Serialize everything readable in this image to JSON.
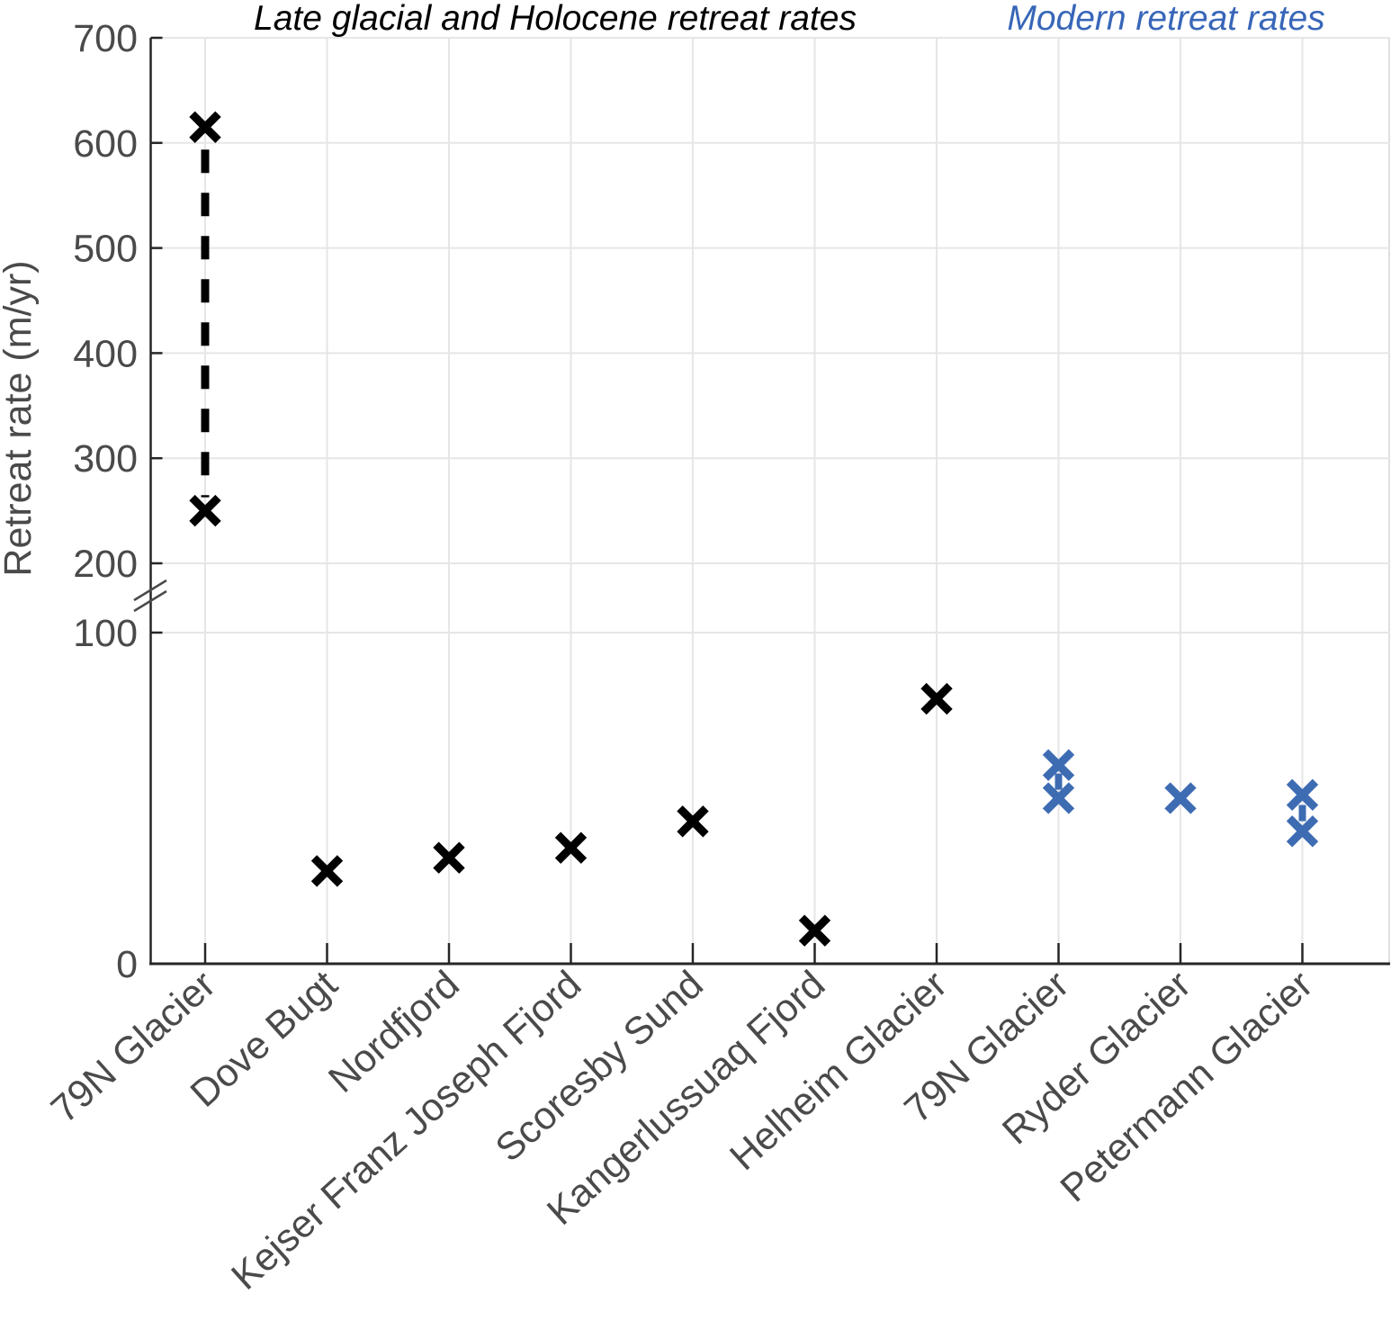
{
  "chart_data": {
    "type": "scatter",
    "marker": "x",
    "grid": true,
    "legend": "none",
    "title_left": "Late glacial and Holocene retreat rates",
    "title_right": "Modern retreat rates",
    "ylabel": "Retreat rate (m/yr)",
    "xlabel": "",
    "units": "m/yr",
    "y_ticks": [
      0,
      100,
      200,
      300,
      400,
      500,
      600,
      700
    ],
    "y_axis_break": {
      "lower_segment": [
        0,
        100
      ],
      "upper_segment": [
        200,
        700
      ]
    },
    "series_meta": [
      {
        "id": "paleo",
        "name": "Late glacial and Holocene retreat rates",
        "color": "#000000"
      },
      {
        "id": "modern",
        "name": "Modern retreat rates",
        "color": "#3e6cb3"
      }
    ],
    "categories": [
      {
        "label": "79N Glacier",
        "series": "paleo",
        "values": [
          250,
          615
        ],
        "range": true
      },
      {
        "label": "Dove Bugt",
        "series": "paleo",
        "values": [
          28
        ],
        "range": false
      },
      {
        "label": "Nordfjord",
        "series": "paleo",
        "values": [
          32
        ],
        "range": false
      },
      {
        "label": "Kejser Franz Joseph Fjord",
        "series": "paleo",
        "values": [
          35
        ],
        "range": false
      },
      {
        "label": "Scoresby Sund",
        "series": "paleo",
        "values": [
          43
        ],
        "range": false
      },
      {
        "label": "Kangerlussuaq Fjord",
        "series": "paleo",
        "values": [
          10
        ],
        "range": false
      },
      {
        "label": "Helheim Glacier",
        "series": "paleo",
        "values": [
          80
        ],
        "range": false
      },
      {
        "label": "79N Glacier",
        "series": "modern",
        "values": [
          50,
          60
        ],
        "range": true
      },
      {
        "label": "Ryder Glacier",
        "series": "modern",
        "values": [
          50
        ],
        "range": false
      },
      {
        "label": "Petermann Glacier",
        "series": "modern",
        "values": [
          40,
          51
        ],
        "range": true
      }
    ]
  },
  "colors": {
    "background": "#ffffff",
    "grid": "#e6e6e6",
    "right_border": "#e0e0e0",
    "axis": "#262626",
    "tick_label": "#4a4a4a",
    "break_mark": "#4a4a4a",
    "paleo_marker": "#000000",
    "modern_marker": "#3e6cb3",
    "modern_title": "#3866b8"
  }
}
